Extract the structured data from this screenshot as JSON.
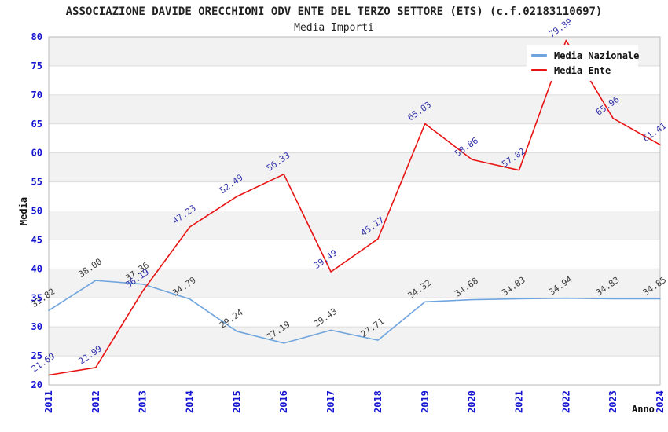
{
  "chart_data": {
    "type": "line",
    "title": "ASSOCIAZIONE DAVIDE ORECCHIONI ODV ENTE DEL TERZO SETTORE (ETS) (c.f.02183110697)",
    "subtitle": "Media Importi",
    "xlabel": "Anno",
    "ylabel": "Media",
    "ylim": [
      20,
      80
    ],
    "yticks": [
      20,
      25,
      30,
      35,
      40,
      45,
      50,
      55,
      60,
      65,
      70,
      75,
      80
    ],
    "categories": [
      "2011",
      "2012",
      "2013",
      "2014",
      "2015",
      "2016",
      "2017",
      "2018",
      "2019",
      "2020",
      "2021",
      "2022",
      "2023",
      "2024"
    ],
    "grid": "horizontal-bands-alternating",
    "legend_position": "top-right-inside",
    "series": [
      {
        "id": "media-nazionale",
        "name": "Media Nazionale",
        "color": "#6FA4DE",
        "label_color": "#3C3C3C",
        "values": [
          32.82,
          38.0,
          37.36,
          34.79,
          29.24,
          27.19,
          29.43,
          27.71,
          34.32,
          34.68,
          34.83,
          34.94,
          34.83,
          34.85
        ]
      },
      {
        "id": "media-ente",
        "name": "Media Ente",
        "color": "#E81414",
        "label_color": "#3232AA",
        "values": [
          21.69,
          22.99,
          36.19,
          47.23,
          52.49,
          56.33,
          39.49,
          45.17,
          65.03,
          58.86,
          57.02,
          79.39,
          65.96,
          61.41
        ]
      }
    ],
    "style": {
      "band_gray": "#F2F2F2",
      "band_white": "#FFFFFF",
      "gridline": "#DCDCDC",
      "plot_border": "#B9B9B9",
      "tick_color": "#1616D1",
      "title_color": "#222222"
    }
  }
}
